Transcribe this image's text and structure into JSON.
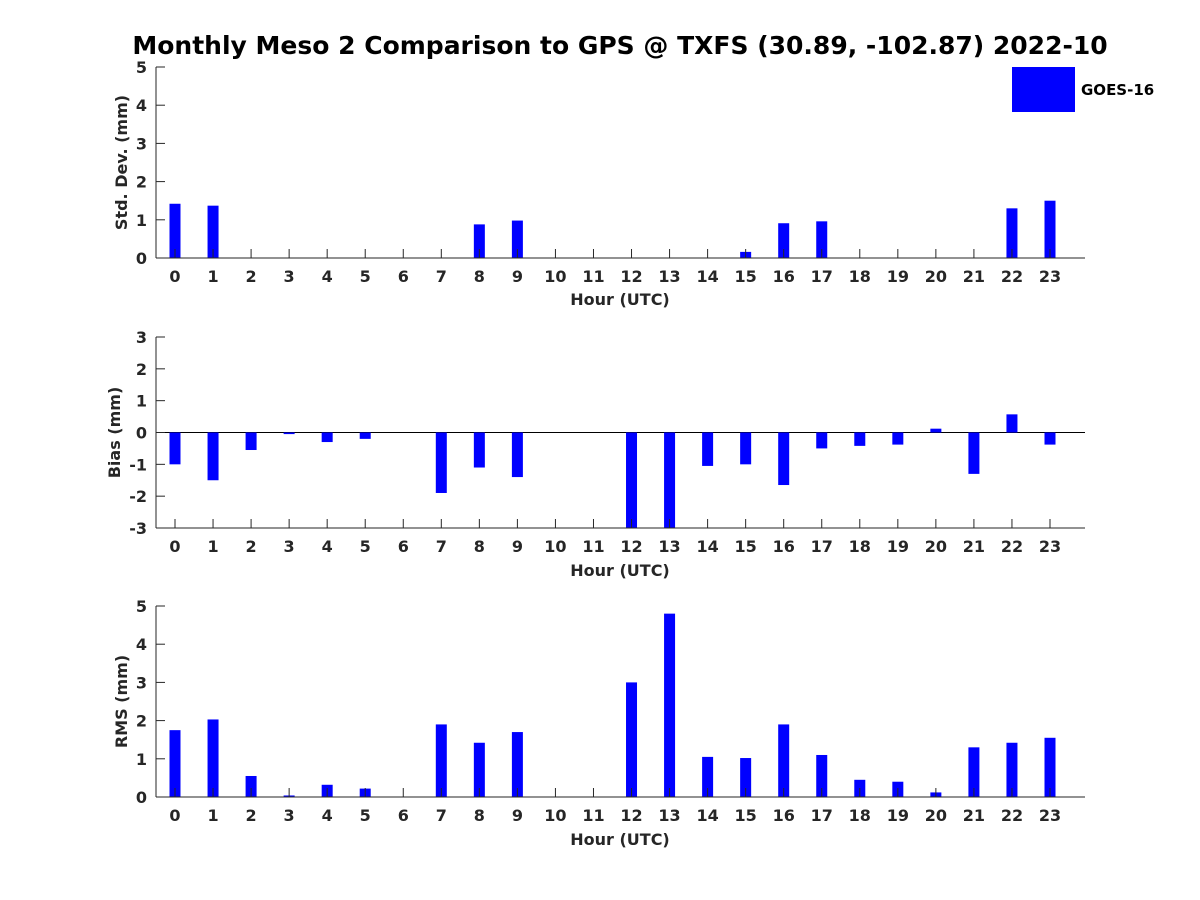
{
  "title": "Monthly Meso 2 Comparison to GPS @ TXFS (30.89, -102.87) 2022-10",
  "legend": {
    "label": "GOES-16",
    "color": "#0000ff"
  },
  "chart_data": [
    {
      "type": "bar",
      "title": "",
      "xlabel": "Hour (UTC)",
      "ylabel": "Std. Dev. (mm)",
      "ylim": [
        0,
        5
      ],
      "yticks": [
        0,
        1,
        2,
        3,
        4,
        5
      ],
      "categories": [
        "0",
        "1",
        "2",
        "3",
        "4",
        "5",
        "6",
        "7",
        "8",
        "9",
        "10",
        "11",
        "12",
        "13",
        "14",
        "15",
        "16",
        "17",
        "18",
        "19",
        "20",
        "21",
        "22",
        "23"
      ],
      "series": [
        {
          "name": "GOES-16",
          "color": "#0000ff",
          "values": [
            1.42,
            1.37,
            null,
            null,
            null,
            null,
            null,
            null,
            0.88,
            0.98,
            null,
            null,
            null,
            null,
            null,
            0.16,
            0.91,
            0.96,
            null,
            null,
            null,
            null,
            1.3,
            1.5
          ]
        }
      ]
    },
    {
      "type": "bar",
      "title": "",
      "xlabel": "Hour (UTC)",
      "ylabel": "Bias (mm)",
      "ylim": [
        -3,
        3
      ],
      "yticks": [
        -3,
        -2,
        -1,
        0,
        1,
        2,
        3
      ],
      "categories": [
        "0",
        "1",
        "2",
        "3",
        "4",
        "5",
        "6",
        "7",
        "8",
        "9",
        "10",
        "11",
        "12",
        "13",
        "14",
        "15",
        "16",
        "17",
        "18",
        "19",
        "20",
        "21",
        "22",
        "23"
      ],
      "series": [
        {
          "name": "GOES-16",
          "color": "#0000ff",
          "values": [
            -1.0,
            -1.5,
            -0.55,
            -0.05,
            -0.3,
            -0.2,
            null,
            -1.9,
            -1.1,
            -1.4,
            null,
            null,
            -3.0,
            -3.0,
            -1.05,
            -1.0,
            -1.65,
            -0.5,
            -0.42,
            -0.38,
            0.12,
            -1.3,
            0.57,
            -0.38
          ]
        }
      ]
    },
    {
      "type": "bar",
      "title": "",
      "xlabel": "Hour (UTC)",
      "ylabel": "RMS (mm)",
      "ylim": [
        0,
        5
      ],
      "yticks": [
        0,
        1,
        2,
        3,
        4,
        5
      ],
      "categories": [
        "0",
        "1",
        "2",
        "3",
        "4",
        "5",
        "6",
        "7",
        "8",
        "9",
        "10",
        "11",
        "12",
        "13",
        "14",
        "15",
        "16",
        "17",
        "18",
        "19",
        "20",
        "21",
        "22",
        "23"
      ],
      "series": [
        {
          "name": "GOES-16",
          "color": "#0000ff",
          "values": [
            1.75,
            2.03,
            0.55,
            0.04,
            0.32,
            0.22,
            null,
            1.9,
            1.42,
            1.7,
            null,
            null,
            3.0,
            4.8,
            1.05,
            1.02,
            1.9,
            1.1,
            0.45,
            0.4,
            0.12,
            1.3,
            1.42,
            1.55
          ]
        }
      ]
    }
  ]
}
